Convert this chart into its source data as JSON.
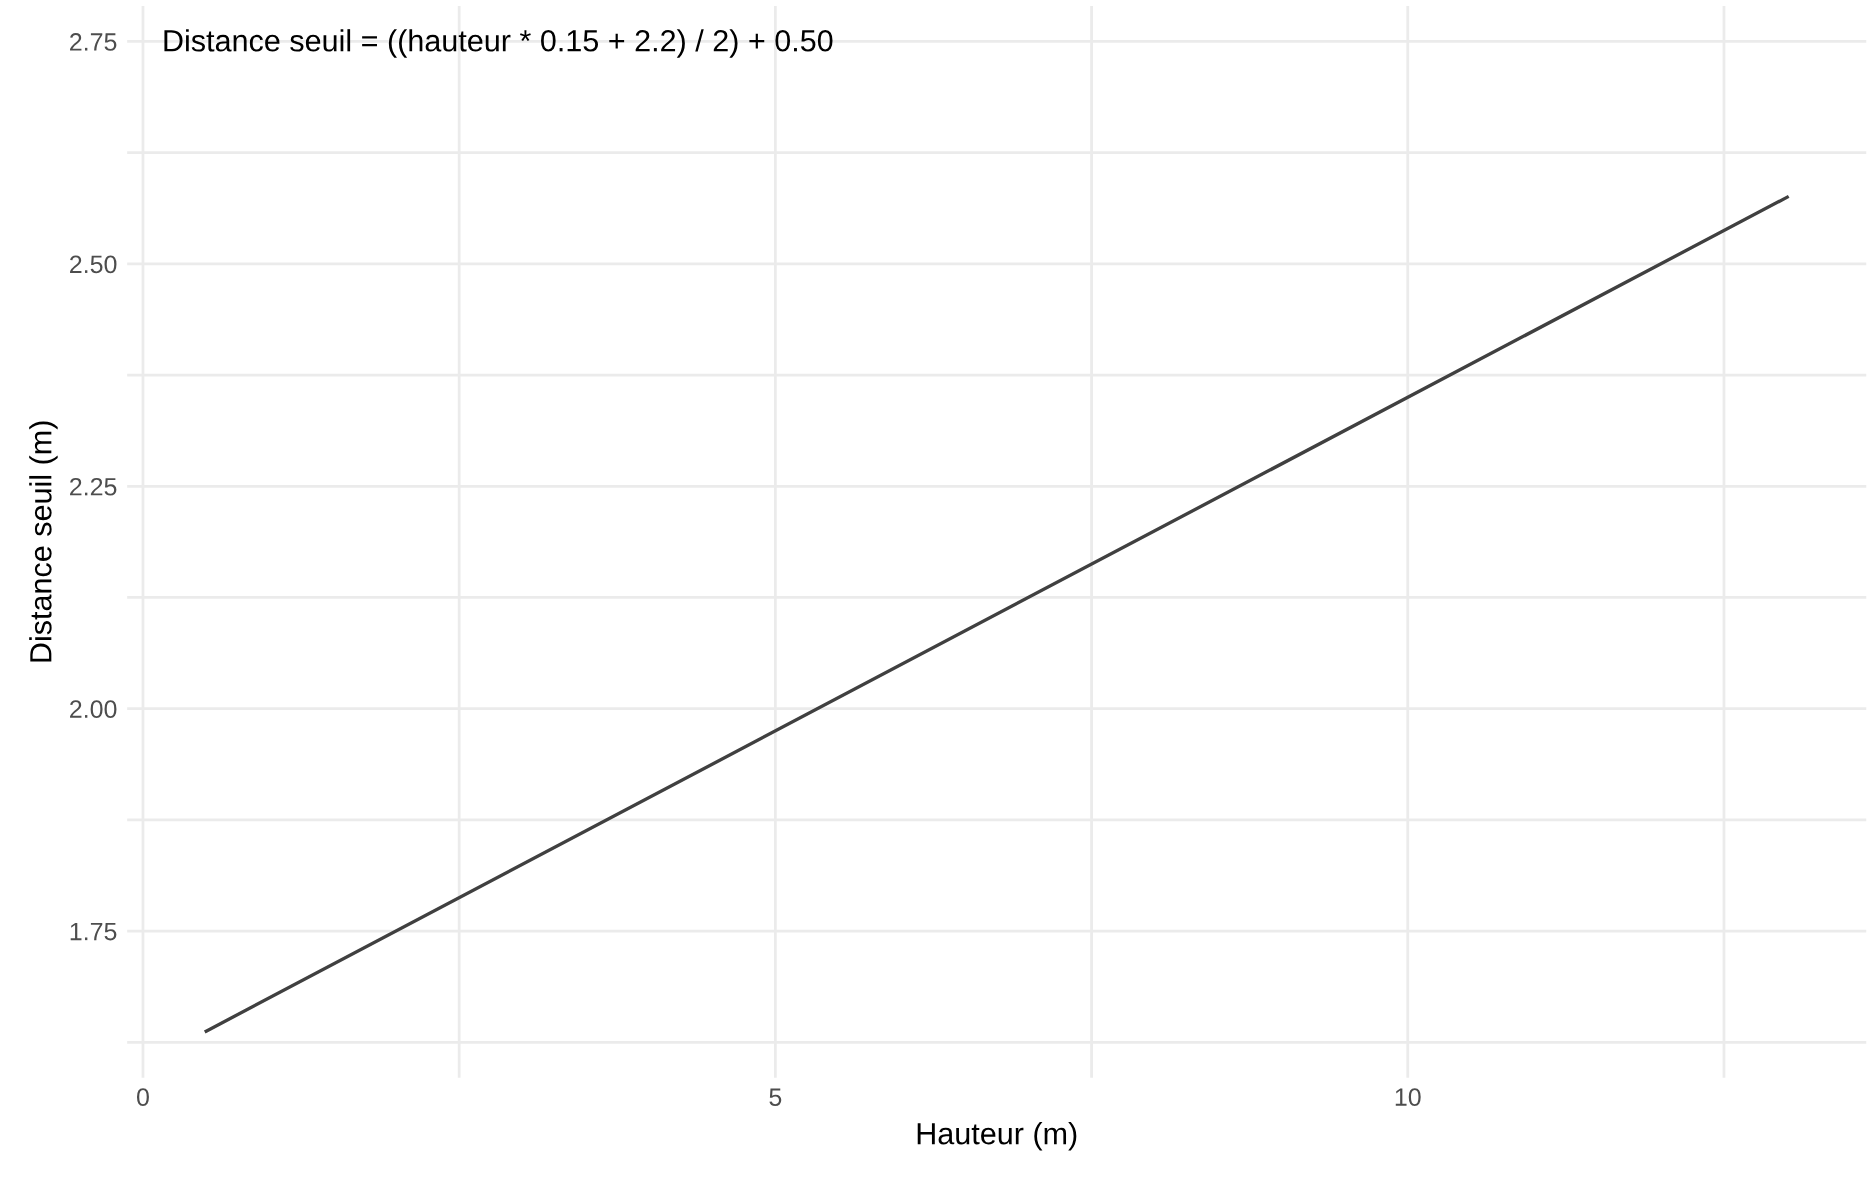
{
  "chart_data": {
    "type": "line",
    "xlabel": "Hauteur (m)",
    "ylabel": "Distance seuil (m)",
    "annotations": [
      "Distance seuil = ((hauteur * 0.15 + 2.2) / 2) + 0.50"
    ],
    "x": [
      0.5,
      13
    ],
    "series": [
      {
        "color": "#404040",
        "values": [
          1.6375,
          2.575
        ]
      }
    ],
    "xlim": [
      -0.125,
      13.625
    ],
    "xticks": [
      0,
      {
        "value": 2.5,
        "label": null
      },
      5,
      {
        "value": 7.5,
        "label": null
      },
      10,
      {
        "value": 12.5,
        "label": null
      }
    ],
    "ylim": [
      1.585,
      2.79
    ],
    "yticks": [
      {
        "value": 1.625,
        "label": null
      },
      1.75,
      {
        "value": 1.875,
        "label": null
      },
      "2.00",
      {
        "value": 2.125,
        "label": null
      },
      2.25,
      {
        "value": 2.375,
        "label": null
      },
      "2.50",
      {
        "value": 2.625,
        "label": null
      },
      2.75
    ],
    "grid": true,
    "marker": "none",
    "line_style": "solid",
    "legend": false
  }
}
